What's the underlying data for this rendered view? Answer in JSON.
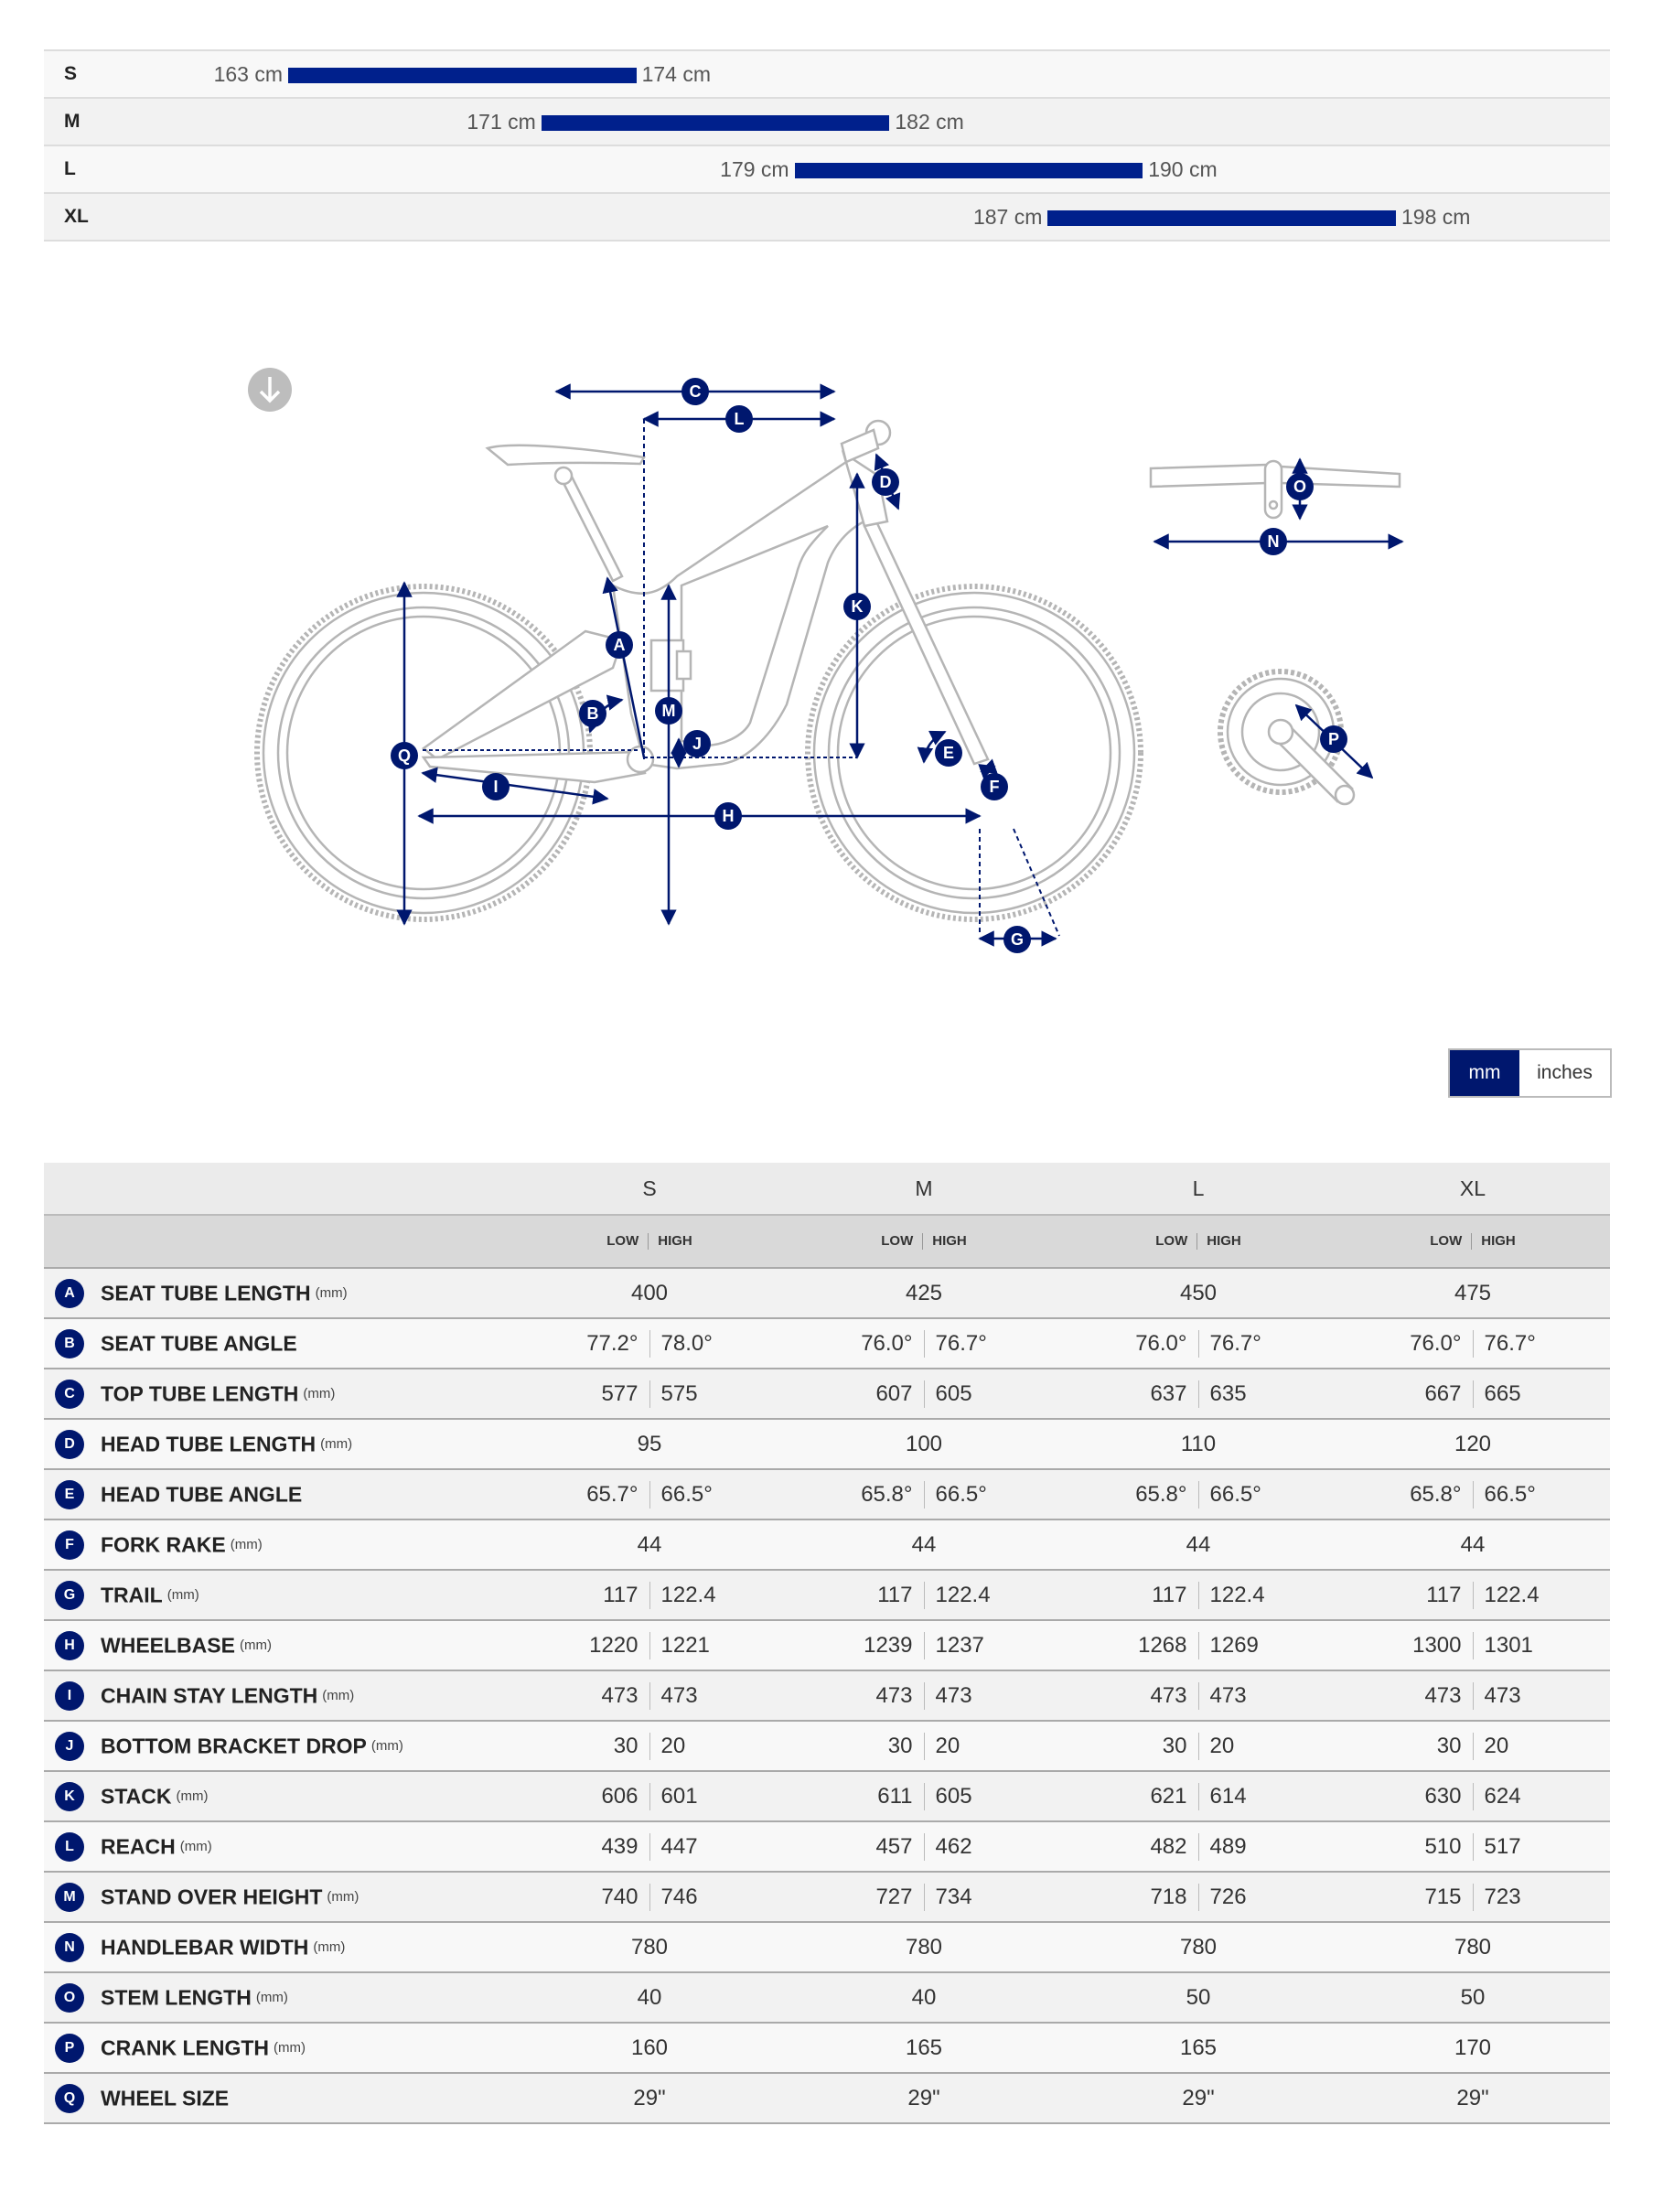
{
  "rider_sizes": [
    {
      "size": "S",
      "min_cm": 163,
      "max_cm": 174,
      "min_label": "163 cm",
      "max_label": "174 cm"
    },
    {
      "size": "M",
      "min_cm": 171,
      "max_cm": 182,
      "min_label": "171 cm",
      "max_label": "182 cm"
    },
    {
      "size": "L",
      "min_cm": 179,
      "max_cm": 190,
      "min_label": "179 cm",
      "max_label": "190 cm"
    },
    {
      "size": "XL",
      "min_cm": 187,
      "max_cm": 198,
      "min_label": "187 cm",
      "max_label": "198 cm"
    }
  ],
  "diagram": {
    "download_icon": "arrow-down-circle-icon"
  },
  "units": {
    "mm": "mm",
    "inches": "inches",
    "selected": "mm"
  },
  "table": {
    "sizes": [
      "S",
      "M",
      "L",
      "XL"
    ],
    "low": "LOW",
    "high": "HIGH",
    "rows": [
      {
        "letter": "A",
        "name": "SEAT TUBE LENGTH",
        "unit": "(mm)",
        "values": [
          [
            "400"
          ],
          [
            "425"
          ],
          [
            "450"
          ],
          [
            "475"
          ]
        ]
      },
      {
        "letter": "B",
        "name": "SEAT TUBE ANGLE",
        "unit": "",
        "values": [
          [
            "77.2°",
            "78.0°"
          ],
          [
            "76.0°",
            "76.7°"
          ],
          [
            "76.0°",
            "76.7°"
          ],
          [
            "76.0°",
            "76.7°"
          ]
        ]
      },
      {
        "letter": "C",
        "name": "TOP TUBE LENGTH",
        "unit": "(mm)",
        "values": [
          [
            "577",
            "575"
          ],
          [
            "607",
            "605"
          ],
          [
            "637",
            "635"
          ],
          [
            "667",
            "665"
          ]
        ]
      },
      {
        "letter": "D",
        "name": "HEAD TUBE LENGTH",
        "unit": "(mm)",
        "values": [
          [
            "95"
          ],
          [
            "100"
          ],
          [
            "110"
          ],
          [
            "120"
          ]
        ]
      },
      {
        "letter": "E",
        "name": "HEAD TUBE ANGLE",
        "unit": "",
        "values": [
          [
            "65.7°",
            "66.5°"
          ],
          [
            "65.8°",
            "66.5°"
          ],
          [
            "65.8°",
            "66.5°"
          ],
          [
            "65.8°",
            "66.5°"
          ]
        ]
      },
      {
        "letter": "F",
        "name": "FORK RAKE",
        "unit": "(mm)",
        "values": [
          [
            "44"
          ],
          [
            "44"
          ],
          [
            "44"
          ],
          [
            "44"
          ]
        ]
      },
      {
        "letter": "G",
        "name": "TRAIL",
        "unit": "(mm)",
        "values": [
          [
            "117",
            "122.4"
          ],
          [
            "117",
            "122.4"
          ],
          [
            "117",
            "122.4"
          ],
          [
            "117",
            "122.4"
          ]
        ]
      },
      {
        "letter": "H",
        "name": "WHEELBASE",
        "unit": "(mm)",
        "values": [
          [
            "1220",
            "1221"
          ],
          [
            "1239",
            "1237"
          ],
          [
            "1268",
            "1269"
          ],
          [
            "1300",
            "1301"
          ]
        ]
      },
      {
        "letter": "I",
        "name": "CHAIN STAY LENGTH",
        "unit": "(mm)",
        "values": [
          [
            "473",
            "473"
          ],
          [
            "473",
            "473"
          ],
          [
            "473",
            "473"
          ],
          [
            "473",
            "473"
          ]
        ]
      },
      {
        "letter": "J",
        "name": "BOTTOM BRACKET DROP",
        "unit": "(mm)",
        "values": [
          [
            "30",
            "20"
          ],
          [
            "30",
            "20"
          ],
          [
            "30",
            "20"
          ],
          [
            "30",
            "20"
          ]
        ]
      },
      {
        "letter": "K",
        "name": "STACK",
        "unit": "(mm)",
        "values": [
          [
            "606",
            "601"
          ],
          [
            "611",
            "605"
          ],
          [
            "621",
            "614"
          ],
          [
            "630",
            "624"
          ]
        ]
      },
      {
        "letter": "L",
        "name": "REACH",
        "unit": "(mm)",
        "values": [
          [
            "439",
            "447"
          ],
          [
            "457",
            "462"
          ],
          [
            "482",
            "489"
          ],
          [
            "510",
            "517"
          ]
        ]
      },
      {
        "letter": "M",
        "name": "STAND OVER HEIGHT",
        "unit": "(mm)",
        "values": [
          [
            "740",
            "746"
          ],
          [
            "727",
            "734"
          ],
          [
            "718",
            "726"
          ],
          [
            "715",
            "723"
          ]
        ]
      },
      {
        "letter": "N",
        "name": "HANDLEBAR WIDTH",
        "unit": "(mm)",
        "values": [
          [
            "780"
          ],
          [
            "780"
          ],
          [
            "780"
          ],
          [
            "780"
          ]
        ]
      },
      {
        "letter": "O",
        "name": "STEM LENGTH",
        "unit": "(mm)",
        "values": [
          [
            "40"
          ],
          [
            "40"
          ],
          [
            "50"
          ],
          [
            "50"
          ]
        ]
      },
      {
        "letter": "P",
        "name": "CRANK LENGTH",
        "unit": "(mm)",
        "values": [
          [
            "160"
          ],
          [
            "165"
          ],
          [
            "165"
          ],
          [
            "170"
          ]
        ]
      },
      {
        "letter": "Q",
        "name": "WHEEL SIZE",
        "unit": "",
        "values": [
          [
            "29\""
          ],
          [
            "29\""
          ],
          [
            "29\""
          ],
          [
            "29\""
          ]
        ]
      }
    ]
  },
  "colors": {
    "accent": "#00208c",
    "badge": "#00176e",
    "drawing": "#b5b5b5"
  }
}
